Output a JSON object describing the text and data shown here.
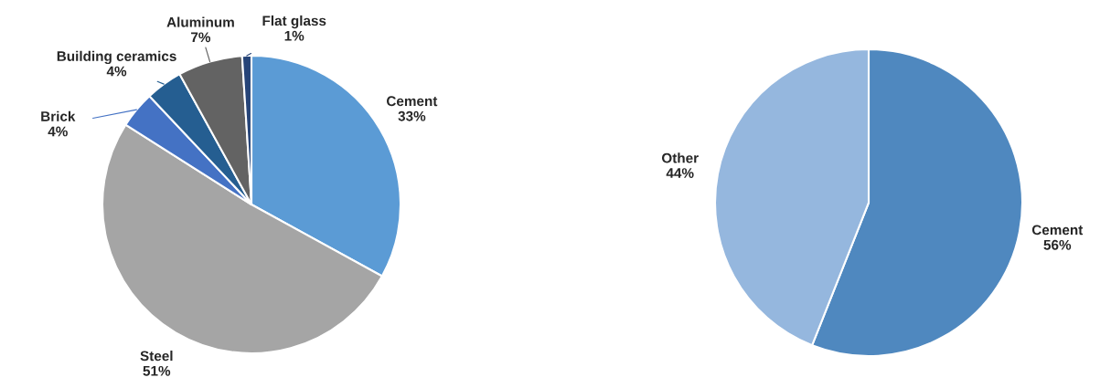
{
  "chart_data": [
    {
      "type": "pie",
      "categories": [
        "Cement",
        "Steel",
        "Brick",
        "Building ceramics",
        "Aluminum",
        "Flat glass"
      ],
      "values": [
        33,
        51,
        4,
        4,
        7,
        1
      ],
      "colors": [
        "#5b9bd5",
        "#a5a5a5",
        "#4472c4",
        "#255e91",
        "#636363",
        "#264478"
      ],
      "value_labels": [
        "33%",
        "51%",
        "4%",
        "4%",
        "7%",
        "1%"
      ]
    },
    {
      "type": "pie",
      "categories": [
        "Cement",
        "Other"
      ],
      "values": [
        56,
        44
      ],
      "colors": [
        "#4f88bf",
        "#95b7de"
      ],
      "value_labels": [
        "56%",
        "44%"
      ]
    }
  ]
}
